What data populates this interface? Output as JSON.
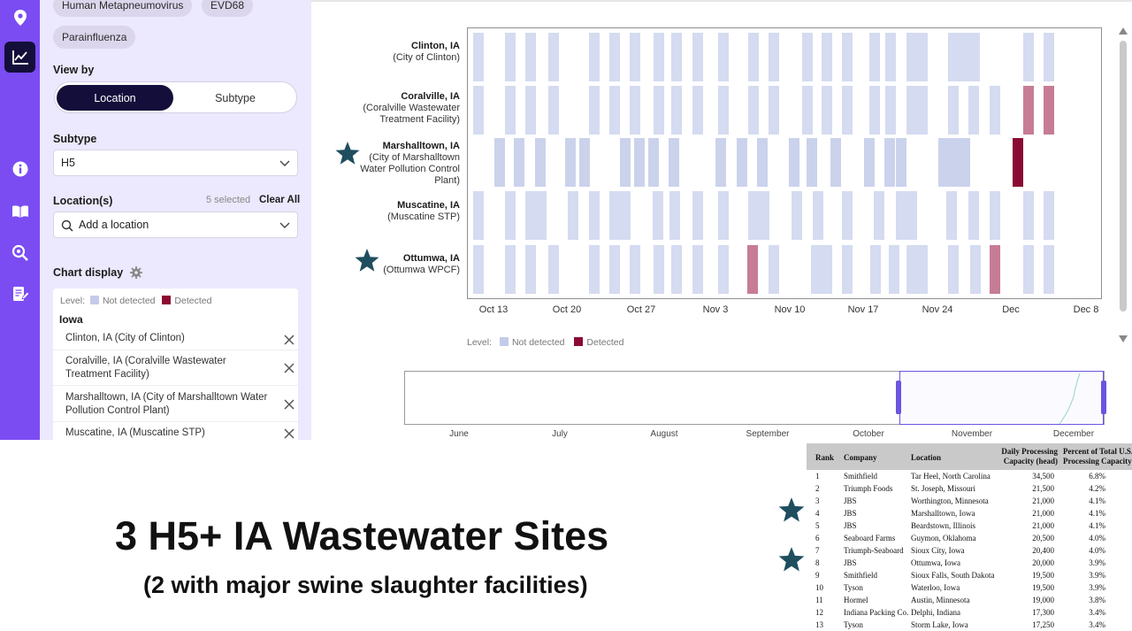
{
  "filters": {
    "chips": [
      "Human Metapneumovirus",
      "EVD68",
      "Parainfluenza"
    ],
    "view_by_label": "View by",
    "view_by_options": [
      "Location",
      "Subtype"
    ],
    "subtype_label": "Subtype",
    "subtype_value": "H5",
    "locations_label": "Location(s)",
    "selected_count": "5 selected",
    "clear_all": "Clear All",
    "add_location_placeholder": "Add a location",
    "chart_display_label": "Chart display",
    "legend_level": "Level:",
    "legend_not_detected": "Not detected",
    "legend_detected": "Detected",
    "state_group": "Iowa",
    "location_items": [
      "Clinton, IA (City of Clinton)",
      "Coralville, IA (Coralville Wastewater Treatment Facility)",
      "Marshalltown, IA (City of Marshalltown Water Pollution Control Plant)",
      "Muscatine, IA (Muscatine STP)"
    ]
  },
  "colors": {
    "rail": "#7a4cf2",
    "sidebar": "#ece8fd",
    "not_detected": "#d5dbf0",
    "detected_strong": "#8b0a33",
    "detected_weak": "#c77c95",
    "star": "#1f4e5e"
  },
  "chart_data": {
    "type": "heatmap",
    "x_ticks": [
      "Oct 13",
      "Oct 20",
      "Oct 27",
      "Nov 3",
      "Nov 10",
      "Nov 17",
      "Nov 24",
      "Dec",
      "Dec 8"
    ],
    "sites": [
      {
        "name": "Clinton, IA",
        "facility": "(City of Clinton)",
        "starred": false
      },
      {
        "name": "Coralville, IA",
        "facility": "(Coralville Wastewater Treatment Facility)",
        "starred": false
      },
      {
        "name": "Marshalltown, IA",
        "facility": "(City of Marshalltown Water Pollution Control Plant)",
        "starred": true
      },
      {
        "name": "Muscatine, IA",
        "facility": "(Muscatine STP)",
        "starred": false
      },
      {
        "name": "Ottumwa, IA",
        "facility": "(Ottumwa WPCF)",
        "starred": true
      }
    ],
    "legend": {
      "level": "Level:",
      "not_detected": "Not detected",
      "detected": "Detected"
    },
    "overview_months": [
      "June",
      "July",
      "August",
      "September",
      "October",
      "November",
      "December"
    ]
  },
  "caption": {
    "headline": "3 H5+ IA Wastewater Sites",
    "subline": "(2 with major swine slaughter facilities)"
  },
  "table": {
    "headers": [
      "Rank",
      "Company",
      "Location",
      "Daily Processing Capacity (head)",
      "Percent of Total U.S. Processing Capacity"
    ],
    "rows": [
      [
        "1",
        "Smithfield",
        "Tar Heel, North Carolina",
        "34,500",
        "6.8%",
        false
      ],
      [
        "2",
        "Triumph Foods",
        "St. Joseph, Missouri",
        "21,500",
        "4.2%",
        false
      ],
      [
        "3",
        "JBS",
        "Worthington, Minnesota",
        "21,000",
        "4.1%",
        true
      ],
      [
        "4",
        "JBS",
        "Marshalltown, Iowa",
        "21,000",
        "4.1%",
        false
      ],
      [
        "5",
        "JBS",
        "Beardstown, Illinois",
        "21,000",
        "4.1%",
        false
      ],
      [
        "6",
        "Seaboard Farms",
        "Guymon, Oklahoma",
        "20,500",
        "4.0%",
        false
      ],
      [
        "7",
        "Triumph-Seaboard",
        "Sioux City, Iowa",
        "20,400",
        "4.0%",
        false
      ],
      [
        "8",
        "JBS",
        "Ottumwa, Iowa",
        "20,000",
        "3.9%",
        true
      ],
      [
        "9",
        "Smithfield",
        "Sioux Falls, South Dakota",
        "19,500",
        "3.9%",
        false
      ],
      [
        "10",
        "Tyson",
        "Waterloo, Iowa",
        "19,500",
        "3.9%",
        false
      ],
      [
        "11",
        "Hormel",
        "Austin, Minnesota",
        "19,000",
        "3.8%",
        false
      ],
      [
        "12",
        "Indiana Packing Co.",
        "Delphi, Indiana",
        "17,300",
        "3.4%",
        false
      ],
      [
        "13",
        "Tyson",
        "Storm Lake, Iowa",
        "17,250",
        "3.4%",
        false
      ]
    ]
  }
}
